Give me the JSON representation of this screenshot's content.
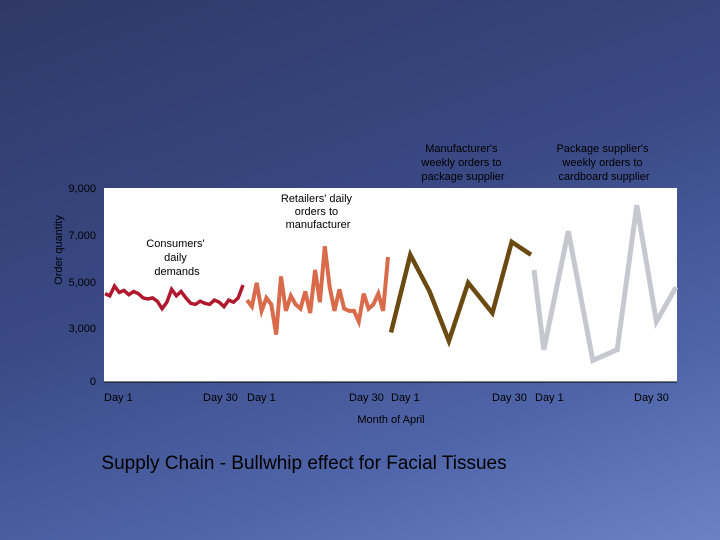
{
  "chart_data": {
    "type": "line",
    "title": "Supply Chain - Bullwhip effect for Facial Tissues",
    "xlabel": "Month of April",
    "ylabel": "Order quantity",
    "ylim": [
      0,
      9000
    ],
    "y_ticks": [
      "0",
      "3,000",
      "5,000",
      "7,000",
      "9,000"
    ],
    "y_tick_values": [
      0,
      3000,
      5000,
      7000,
      9000
    ],
    "panel_tick_labels": [
      {
        "start": "Day 1",
        "end": "Day 30"
      },
      {
        "start": "Day 1",
        "end": "Day 30"
      },
      {
        "start": "Day 1",
        "end": "Day 30"
      },
      {
        "start": "Day 1",
        "end": "Day 30"
      }
    ],
    "colors": [
      "#b0182e",
      "#d96a4a",
      "#6b4a12",
      "#c6c8d0"
    ],
    "series": [
      {
        "name": "Consumers' daily demands",
        "x": [
          1,
          2,
          3,
          4,
          5,
          6,
          7,
          8,
          9,
          10,
          11,
          12,
          13,
          14,
          15,
          16,
          17,
          18,
          19,
          20,
          21,
          22,
          23,
          24,
          25,
          26,
          27,
          28,
          29,
          30
        ],
        "values": [
          4100,
          4000,
          4450,
          4150,
          4250,
          4050,
          4200,
          4100,
          3900,
          3850,
          3900,
          3750,
          3400,
          3700,
          4300,
          4000,
          4200,
          3900,
          3650,
          3600,
          3750,
          3650,
          3600,
          3800,
          3700,
          3500,
          3800,
          3700,
          3900,
          4500
        ]
      },
      {
        "name": "Retailers' daily orders to manufacturer",
        "x": [
          1,
          2,
          3,
          4,
          5,
          6,
          7,
          8,
          9,
          10,
          11,
          12,
          13,
          14,
          15,
          16,
          17,
          18,
          19,
          20,
          21,
          22,
          23,
          24,
          25,
          26,
          27,
          28,
          29,
          30
        ],
        "values": [
          3800,
          3500,
          4600,
          3300,
          3900,
          3600,
          2200,
          4900,
          3300,
          4000,
          3600,
          3400,
          4200,
          3200,
          5200,
          3700,
          6300,
          4400,
          3300,
          4300,
          3400,
          3300,
          3300,
          2800,
          4100,
          3400,
          3600,
          4100,
          3300,
          5800
        ]
      },
      {
        "name": "Manufacturer's weekly orders to package supplier",
        "x": [
          1,
          5,
          9,
          13,
          17,
          22,
          26,
          30
        ],
        "values": [
          2300,
          5900,
          4200,
          1900,
          4600,
          3200,
          6500,
          5900
        ]
      },
      {
        "name": "Package supplier's weekly orders to cardboard supplier",
        "x": [
          1,
          3,
          8,
          13,
          18,
          22,
          26,
          30
        ],
        "values": [
          5200,
          1500,
          7000,
          1000,
          1500,
          8200,
          2800,
          4400
        ]
      }
    ],
    "annotations": [
      "Consumers' daily demands",
      "Retailers' daily orders to manufacturer",
      "Manufacturer's weekly orders to package supplier",
      "Package supplier's weekly orders to cardboard supplier"
    ]
  }
}
